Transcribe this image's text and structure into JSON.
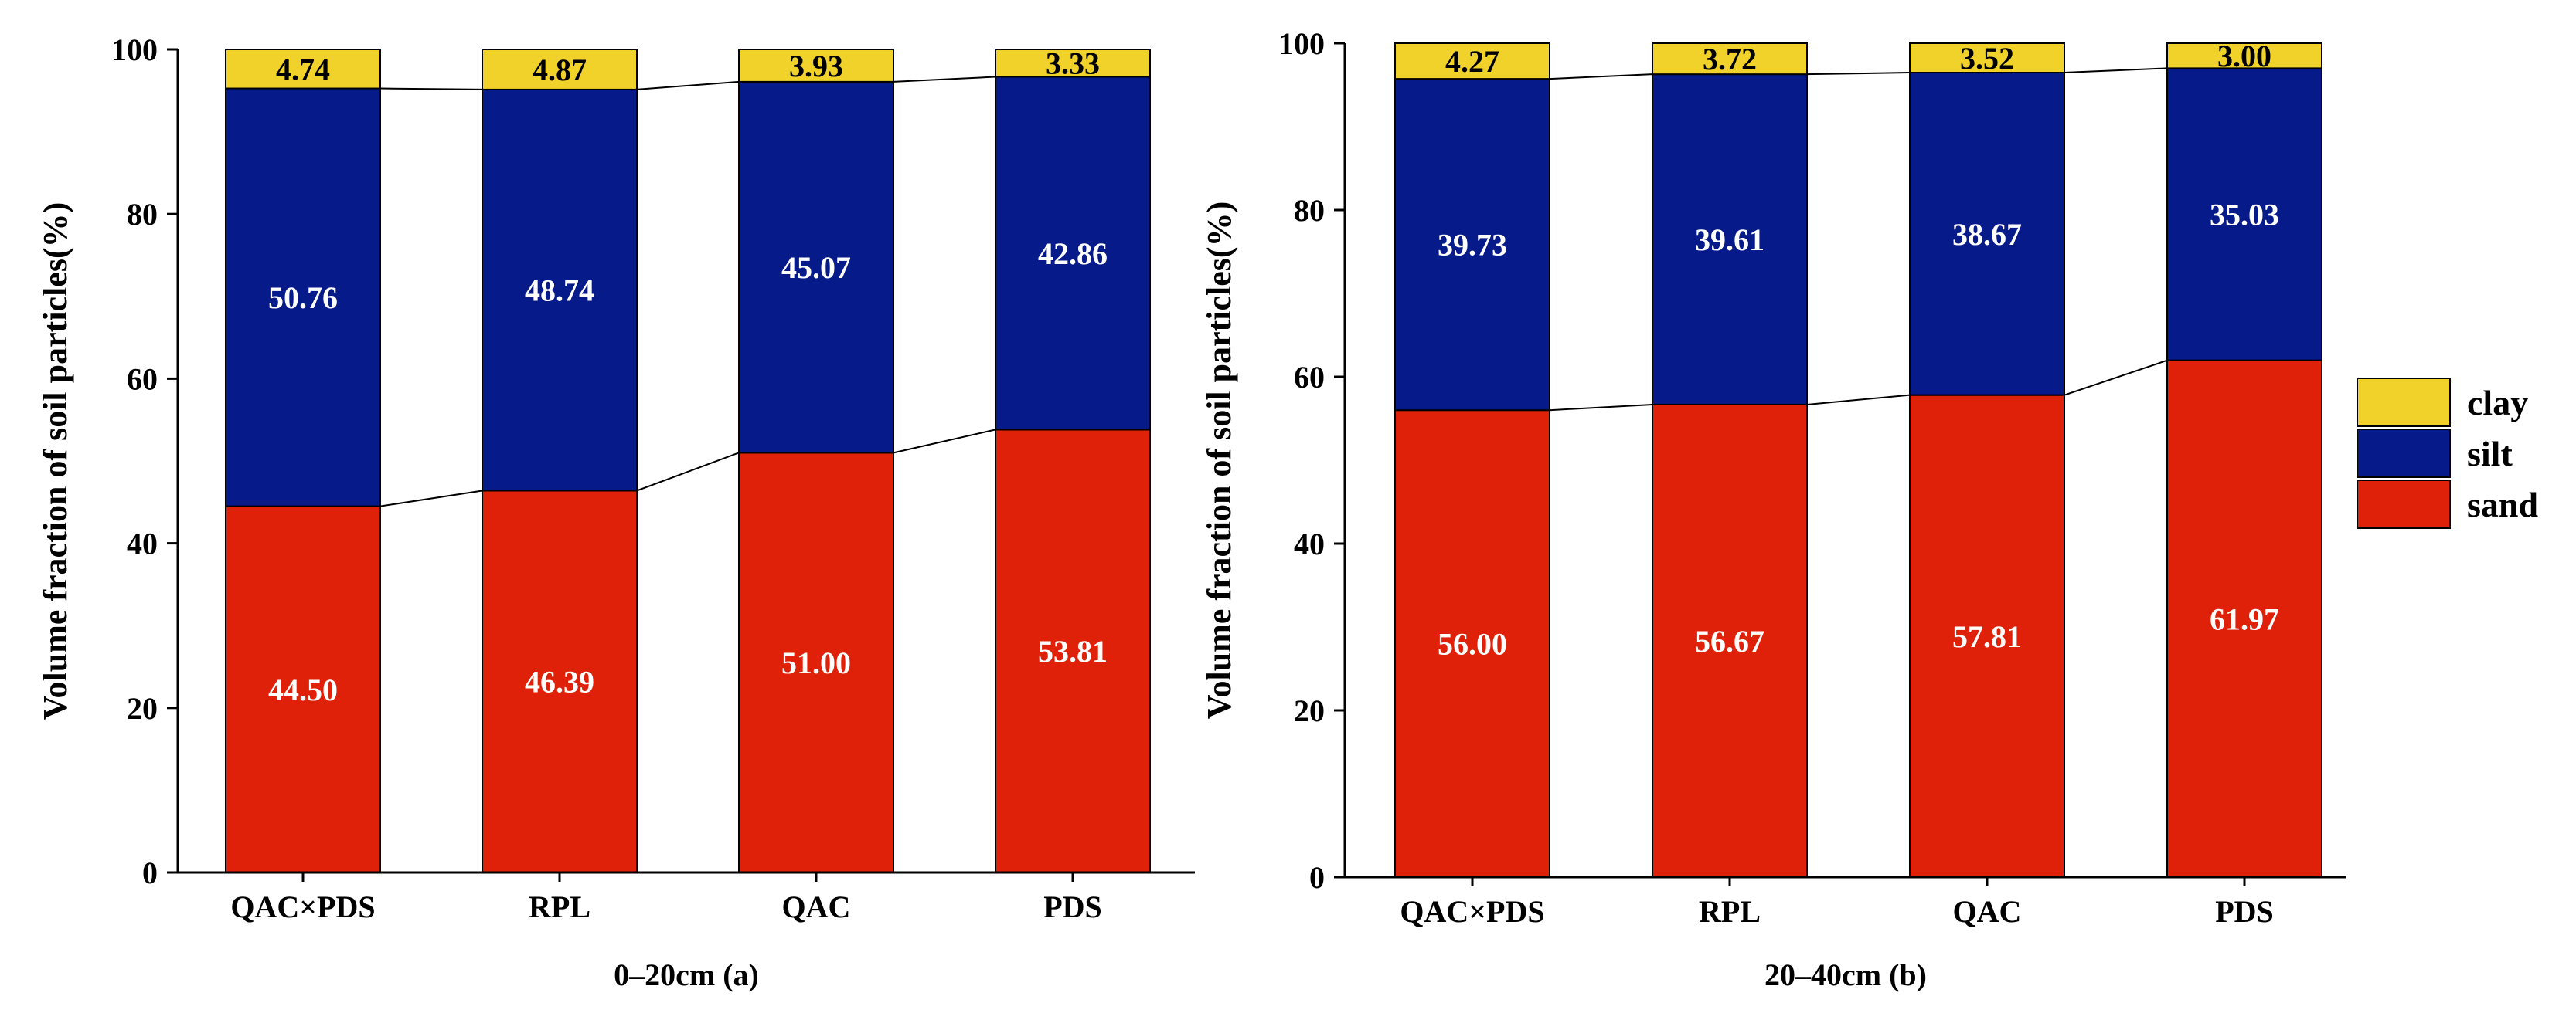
{
  "colors": {
    "clay": "#f0d22a",
    "silt": "#071a8a",
    "sand": "#de2108"
  },
  "legend": [
    {
      "key": "clay",
      "label": "clay"
    },
    {
      "key": "silt",
      "label": "silt"
    },
    {
      "key": "sand",
      "label": "sand"
    }
  ],
  "chart_data": [
    {
      "type": "bar",
      "stacked": true,
      "title": "0–20cm (a)",
      "xlabel": "0–20cm (a)",
      "ylabel": "Volume fraction of soil particles(%)",
      "ylim": [
        0,
        100
      ],
      "yticks": [
        0,
        20,
        40,
        60,
        80,
        100
      ],
      "categories": [
        "QAC×PDS",
        "RPL",
        "QAC",
        "PDS"
      ],
      "series": [
        {
          "name": "sand",
          "values": [
            44.5,
            46.39,
            51.0,
            53.81
          ],
          "labels": [
            "44.50",
            "46.39",
            "51.00",
            "53.81"
          ]
        },
        {
          "name": "silt",
          "values": [
            50.76,
            48.74,
            45.07,
            42.86
          ],
          "labels": [
            "50.76",
            "48.74",
            "45.07",
            "42.86"
          ]
        },
        {
          "name": "clay",
          "values": [
            4.74,
            4.87,
            3.93,
            3.33
          ],
          "labels": [
            "4.74",
            "4.87",
            "3.93",
            "3.33"
          ]
        }
      ]
    },
    {
      "type": "bar",
      "stacked": true,
      "title": "20–40cm (b)",
      "xlabel": "20–40cm (b)",
      "ylabel": "Volume fraction of soil particles(%)",
      "ylim": [
        0,
        100
      ],
      "yticks": [
        0,
        20,
        40,
        60,
        80,
        100
      ],
      "categories": [
        "QAC×PDS",
        "RPL",
        "QAC",
        "PDS"
      ],
      "series": [
        {
          "name": "sand",
          "values": [
            56.0,
            56.67,
            57.81,
            61.97
          ],
          "labels": [
            "56.00",
            "56.67",
            "57.81",
            "61.97"
          ]
        },
        {
          "name": "silt",
          "values": [
            39.73,
            39.61,
            38.67,
            35.03
          ],
          "labels": [
            "39.73",
            "39.61",
            "38.67",
            "35.03"
          ]
        },
        {
          "name": "clay",
          "values": [
            4.27,
            3.72,
            3.52,
            3.0
          ],
          "labels": [
            "4.27",
            "3.72",
            "3.52",
            "3.00"
          ]
        }
      ]
    }
  ]
}
